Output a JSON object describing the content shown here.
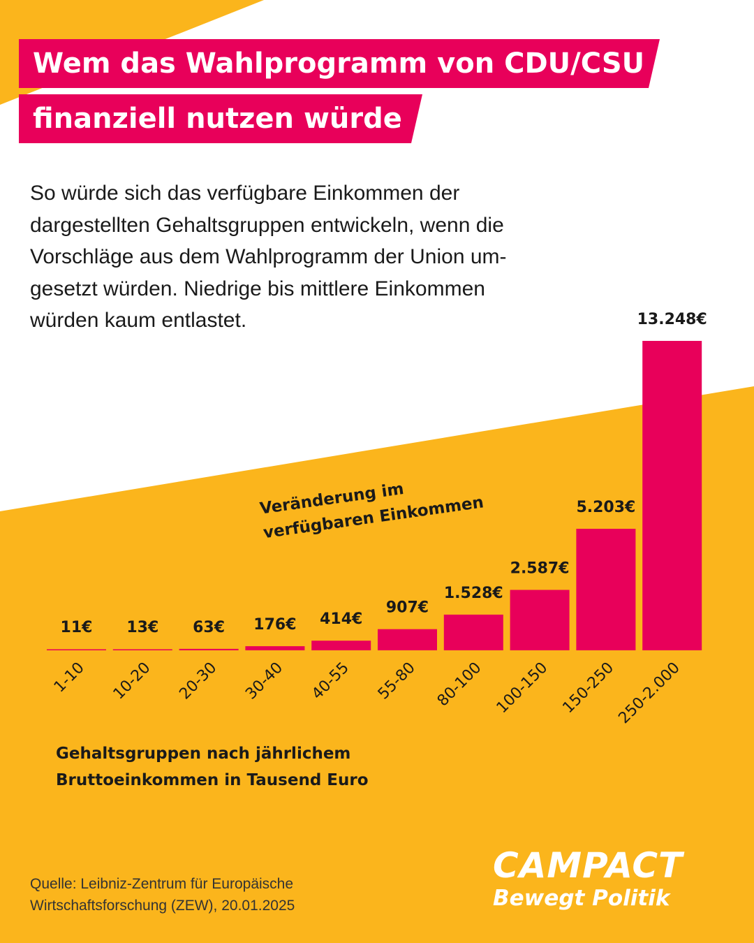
{
  "header": {
    "title_line1": "Wem das Wahlprogramm von CDU/CSU",
    "title_line2": "finanziell nutzen würde"
  },
  "intro": {
    "lines": [
      "So würde sich das verfügbare Einkommen der",
      "dargestellten Gehaltsgruppen entwickeln, wenn die",
      "Vorschläge aus dem Wahlprogramm der Union um-",
      "gesetzt würden. Niedrige bis mittlere Einkommen",
      "würden kaum entlastet."
    ]
  },
  "chart_data": {
    "type": "bar",
    "categories": [
      "1-10",
      "10-20",
      "20-30",
      "30-40",
      "40-55",
      "55-80",
      "80-100",
      "100-150",
      "150-250",
      "250-2.000"
    ],
    "values": [
      11,
      13,
      63,
      176,
      414,
      907,
      1528,
      2587,
      5203,
      13248
    ],
    "value_labels": [
      "11€",
      "13€",
      "63€",
      "176€",
      "414€",
      "907€",
      "1.528€",
      "2.587€",
      "5.203€",
      "13.248€"
    ],
    "ylabel_lines": [
      "Veränderung im",
      "verfügbaren Einkommen"
    ],
    "xlabel_lines": [
      "Gehaltsgruppen nach jährlichem",
      "Bruttoeinkommen in Tausend Euro"
    ],
    "ylim": [
      0,
      13248
    ],
    "grid": false,
    "bar_color": "#E8005A"
  },
  "source": {
    "lines": [
      "Quelle: Leibniz-Zentrum für Europäische",
      "Wirtschaftsforschung  (ZEW), 20.01.2025"
    ]
  },
  "logo": {
    "wordmark": "CAMPACT",
    "tagline": "Bewegt Politik"
  },
  "colors": {
    "accent": "#E8005A",
    "background_yellow": "#FBB51C",
    "background_white": "#FFFFFF",
    "text": "#1A1A1A"
  }
}
